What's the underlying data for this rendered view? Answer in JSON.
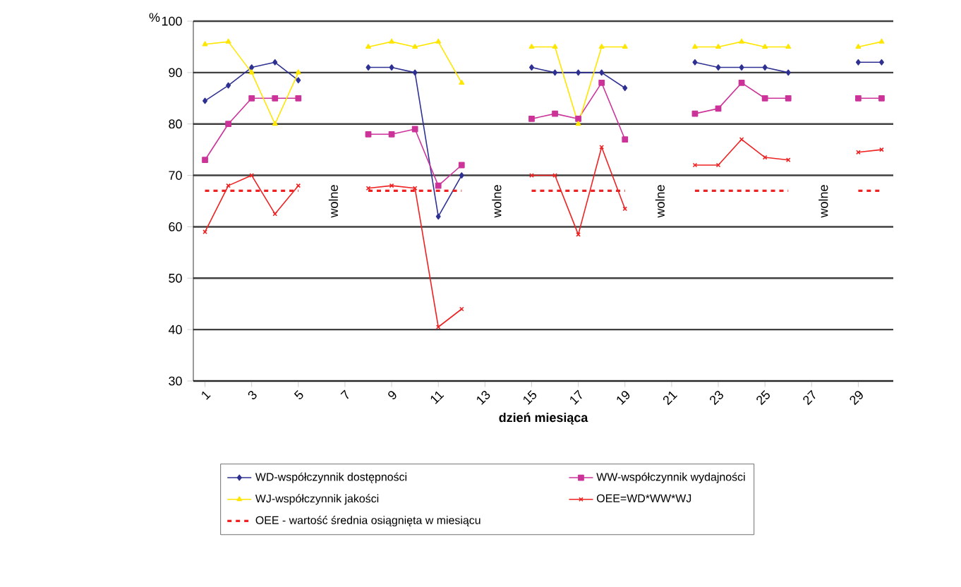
{
  "chart_data": {
    "type": "line",
    "xlabel": "dzień miesiąca",
    "ylabel": "%",
    "x": [
      1,
      2,
      3,
      4,
      5,
      6,
      7,
      8,
      9,
      10,
      11,
      12,
      13,
      14,
      15,
      16,
      17,
      18,
      19,
      20,
      21,
      22,
      23,
      24,
      25,
      26,
      27,
      28,
      29,
      30
    ],
    "xlim": [
      0.5,
      30.5
    ],
    "xticks": [
      1,
      3,
      5,
      7,
      9,
      11,
      13,
      15,
      17,
      19,
      21,
      23,
      25,
      27,
      29
    ],
    "ylim": [
      30,
      100
    ],
    "yticks": [
      30,
      40,
      50,
      60,
      70,
      80,
      90,
      100
    ],
    "grid": "y",
    "legend": "bottom",
    "series": [
      {
        "name": "WD-współczynnik dostępności",
        "color": "#2e3192",
        "marker": "diamond",
        "values": [
          84.5,
          87.5,
          91,
          92,
          88.5,
          null,
          null,
          91,
          91,
          90,
          62,
          70,
          null,
          null,
          91,
          90,
          90,
          90,
          87,
          null,
          null,
          92,
          91,
          91,
          91,
          90,
          null,
          null,
          92,
          92
        ]
      },
      {
        "name": "WW-współczynnik wydajności",
        "color": "#cc3399",
        "marker": "square",
        "values": [
          73,
          80,
          85,
          85,
          85,
          null,
          null,
          78,
          78,
          79,
          68,
          72,
          null,
          null,
          81,
          82,
          81,
          88,
          77,
          null,
          null,
          82,
          83,
          88,
          85,
          85,
          null,
          null,
          85,
          85
        ]
      },
      {
        "name": "WJ-współczynnik jakości",
        "color": "#ffe600",
        "marker": "triangle",
        "values": [
          95.5,
          96,
          90,
          80,
          90,
          null,
          null,
          95,
          96,
          95,
          96,
          88,
          null,
          null,
          95,
          95,
          80,
          95,
          95,
          null,
          null,
          95,
          95,
          96,
          95,
          95,
          null,
          null,
          95,
          96
        ]
      },
      {
        "name": "OEE=WD*WW*WJ",
        "color": "#ee2222",
        "marker": "cross",
        "values": [
          59,
          68,
          70,
          62.5,
          68,
          null,
          null,
          67.5,
          68,
          67.5,
          40.5,
          44,
          null,
          null,
          70,
          70,
          58.5,
          75.5,
          63.5,
          null,
          null,
          72,
          72,
          77,
          73.5,
          73,
          null,
          null,
          74.5,
          75
        ]
      },
      {
        "name": "OEE - wartość średnia osiągnięta w miesiącu",
        "color": "#ee2222",
        "marker": "none",
        "line_style": "dashed",
        "values": [
          67,
          67,
          67,
          67,
          67,
          null,
          null,
          67,
          67,
          67,
          67,
          67,
          null,
          null,
          67,
          67,
          67,
          67,
          67,
          null,
          null,
          67,
          67,
          67,
          67,
          67,
          null,
          null,
          67,
          67
        ]
      }
    ],
    "annotations": [
      {
        "text": "wolne",
        "x": 6.5,
        "y": 65
      },
      {
        "text": "wolne",
        "x": 13.5,
        "y": 65
      },
      {
        "text": "wolne",
        "x": 20.5,
        "y": 65
      },
      {
        "text": "wolne",
        "x": 27.5,
        "y": 65
      }
    ]
  }
}
